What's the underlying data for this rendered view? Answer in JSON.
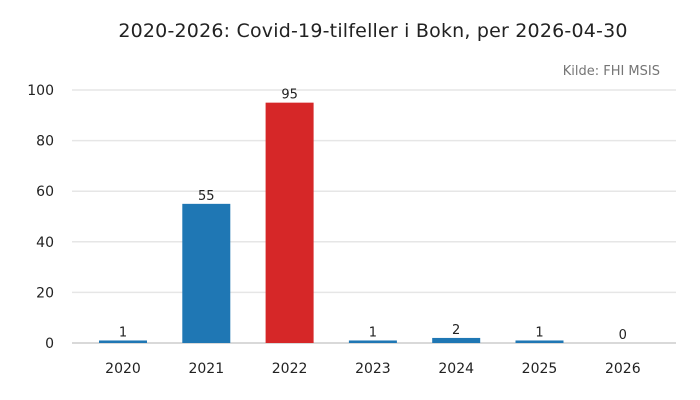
{
  "chart_data": {
    "type": "bar",
    "title": "2020-2026: Covid-19-tilfeller i Bokn, per 2026-04-30",
    "source": "Kilde: FHI MSIS",
    "categories": [
      "2020",
      "2021",
      "2022",
      "2023",
      "2024",
      "2025",
      "2026"
    ],
    "values": [
      1,
      55,
      95,
      1,
      2,
      1,
      0
    ],
    "ylim": [
      0,
      100
    ],
    "yticks": [
      0,
      20,
      40,
      60,
      80,
      100
    ],
    "grid": true,
    "bar_colors": [
      "#1f77b4",
      "#1f77b4",
      "#d62728",
      "#1f77b4",
      "#1f77b4",
      "#1f77b4",
      "#1f77b4"
    ]
  }
}
